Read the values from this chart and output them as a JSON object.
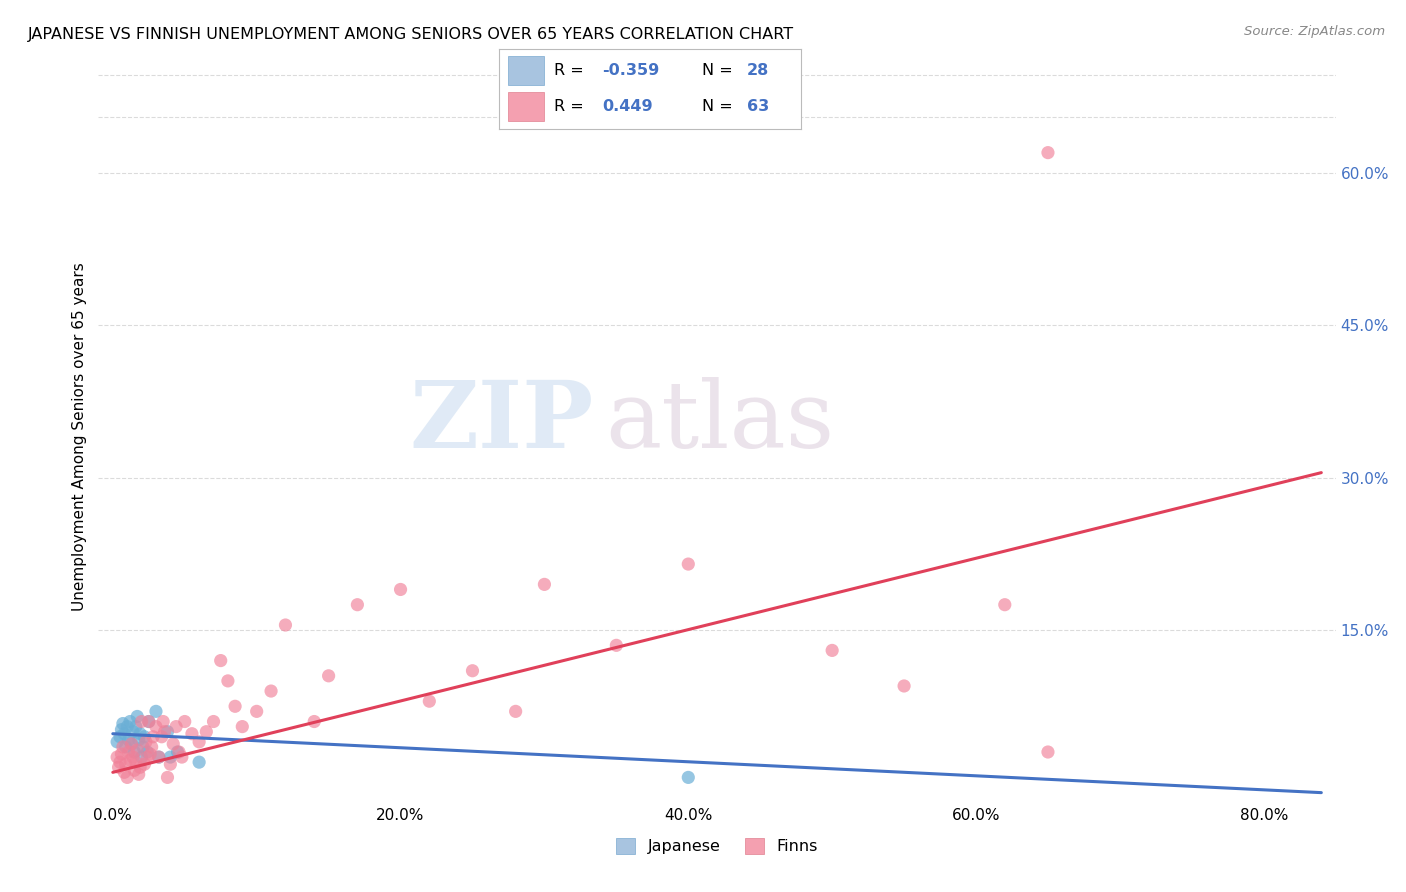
{
  "title": "JAPANESE VS FINNISH UNEMPLOYMENT AMONG SENIORS OVER 65 YEARS CORRELATION CHART",
  "source": "Source: ZipAtlas.com",
  "xlabel_ticks": [
    "0.0%",
    "20.0%",
    "40.0%",
    "60.0%",
    "80.0%"
  ],
  "xlabel_tick_vals": [
    0.0,
    0.2,
    0.4,
    0.6,
    0.8
  ],
  "ylabel": "Unemployment Among Seniors over 65 years",
  "right_ytick_labels": [
    "60.0%",
    "45.0%",
    "30.0%",
    "15.0%"
  ],
  "right_ytick_vals": [
    0.6,
    0.45,
    0.3,
    0.15
  ],
  "xlim": [
    -0.01,
    0.85
  ],
  "ylim": [
    -0.02,
    0.7
  ],
  "watermark_zip": "ZIP",
  "watermark_atlas": "atlas",
  "legend_R1": "-0.359",
  "legend_N1": "28",
  "legend_R2": "0.449",
  "legend_N2": "63",
  "japanese_scatter": {
    "x": [
      0.003,
      0.005,
      0.006,
      0.007,
      0.008,
      0.009,
      0.01,
      0.011,
      0.012,
      0.013,
      0.014,
      0.015,
      0.016,
      0.017,
      0.018,
      0.019,
      0.02,
      0.021,
      0.022,
      0.024,
      0.025,
      0.03,
      0.032,
      0.038,
      0.04,
      0.045,
      0.06,
      0.4
    ],
    "y": [
      0.04,
      0.045,
      0.052,
      0.058,
      0.048,
      0.035,
      0.055,
      0.042,
      0.06,
      0.038,
      0.05,
      0.03,
      0.055,
      0.065,
      0.042,
      0.048,
      0.025,
      0.035,
      0.045,
      0.03,
      0.06,
      0.07,
      0.025,
      0.05,
      0.025,
      0.03,
      0.02,
      0.005
    ],
    "color": "#6aafd6",
    "alpha": 0.7,
    "size": 90
  },
  "finns_scatter": {
    "x": [
      0.003,
      0.004,
      0.005,
      0.006,
      0.007,
      0.008,
      0.009,
      0.01,
      0.011,
      0.012,
      0.013,
      0.014,
      0.015,
      0.016,
      0.017,
      0.018,
      0.019,
      0.02,
      0.022,
      0.023,
      0.024,
      0.025,
      0.026,
      0.027,
      0.028,
      0.03,
      0.032,
      0.034,
      0.035,
      0.036,
      0.038,
      0.04,
      0.042,
      0.044,
      0.046,
      0.048,
      0.05,
      0.055,
      0.06,
      0.065,
      0.07,
      0.075,
      0.08,
      0.085,
      0.09,
      0.1,
      0.11,
      0.12,
      0.14,
      0.15,
      0.17,
      0.2,
      0.22,
      0.25,
      0.28,
      0.3,
      0.35,
      0.4,
      0.5,
      0.55,
      0.62,
      0.65,
      0.65
    ],
    "y": [
      0.025,
      0.015,
      0.02,
      0.028,
      0.035,
      0.01,
      0.018,
      0.005,
      0.03,
      0.022,
      0.038,
      0.025,
      0.012,
      0.02,
      0.032,
      0.008,
      0.015,
      0.06,
      0.018,
      0.04,
      0.025,
      0.06,
      0.028,
      0.035,
      0.045,
      0.055,
      0.025,
      0.045,
      0.06,
      0.05,
      0.005,
      0.018,
      0.038,
      0.055,
      0.03,
      0.025,
      0.06,
      0.048,
      0.04,
      0.05,
      0.06,
      0.12,
      0.1,
      0.075,
      0.055,
      0.07,
      0.09,
      0.155,
      0.06,
      0.105,
      0.175,
      0.19,
      0.08,
      0.11,
      0.07,
      0.195,
      0.135,
      0.215,
      0.13,
      0.095,
      0.175,
      0.03,
      0.62
    ],
    "color": "#f08098",
    "alpha": 0.65,
    "size": 90
  },
  "japanese_trend": {
    "x_start": 0.0,
    "x_end": 0.84,
    "y_start": 0.048,
    "y_end": -0.01,
    "color": "#4472c4",
    "linewidth": 2.2
  },
  "finns_trend": {
    "x_start": 0.0,
    "x_end": 0.84,
    "y_start": 0.01,
    "y_end": 0.305,
    "color": "#e0405a",
    "linewidth": 2.2
  },
  "background_color": "#ffffff",
  "grid_color": "#cccccc",
  "grid_alpha": 0.7
}
